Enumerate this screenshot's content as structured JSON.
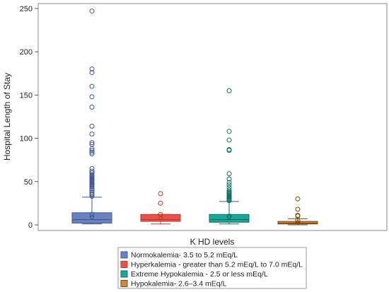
{
  "chart_data": {
    "type": "boxplot",
    "title": "",
    "xlabel": "",
    "ylabel": "Hospital Length of Stay",
    "ylim": [
      0,
      250
    ],
    "yticks": [
      0,
      50,
      100,
      150,
      200,
      250
    ],
    "grid": false,
    "legend": {
      "title": "K HD levels",
      "position": "bottom-center"
    },
    "series": [
      {
        "name": "Normokalemia- 3.5 to 5.2 mEq/L",
        "color": "#6c83be",
        "edge": "#3f5698",
        "min": 1,
        "q1": 2,
        "median": 6,
        "q3": 14,
        "max": 32,
        "mean": 9,
        "outliers": [
          12,
          33,
          35,
          36,
          38,
          40,
          42,
          44,
          45,
          46,
          47,
          48,
          49,
          50,
          51,
          52,
          53,
          54,
          55,
          56,
          57,
          58,
          60,
          62,
          65,
          82,
          84,
          86,
          88,
          93,
          95,
          105,
          114,
          136,
          148,
          160,
          176,
          180,
          247
        ]
      },
      {
        "name": "Hyperkalemia - greater than 5.2 mEq/L to 7.0 mEq/L",
        "color": "#e8534f",
        "edge": "#c0392b",
        "min": 1,
        "q1": 4,
        "median": 6,
        "q3": 12,
        "max": 12,
        "mean": 8,
        "outliers": [
          12,
          25,
          36
        ]
      },
      {
        "name": "Extreme Hypokalemia - 2.5 or less mEq/L",
        "color": "#1ea697",
        "edge": "#0f6f66",
        "min": 1,
        "q1": 3,
        "median": 6,
        "q3": 12,
        "max": 27,
        "mean": 9,
        "outliers": [
          10,
          28,
          29,
          30,
          31,
          32,
          33,
          34,
          35,
          36,
          37,
          38,
          40,
          43,
          46,
          49,
          53,
          59,
          86,
          87,
          98,
          108,
          155
        ]
      },
      {
        "name": "Hypokalemia-  2.6–3.4 mEq/L",
        "color": "#c98a46",
        "edge": "#7a4a14",
        "min": 0,
        "q1": 1,
        "median": 2,
        "q3": 4,
        "max": 7,
        "mean": 3,
        "outliers": [
          5,
          10,
          11,
          18,
          30
        ]
      }
    ]
  }
}
